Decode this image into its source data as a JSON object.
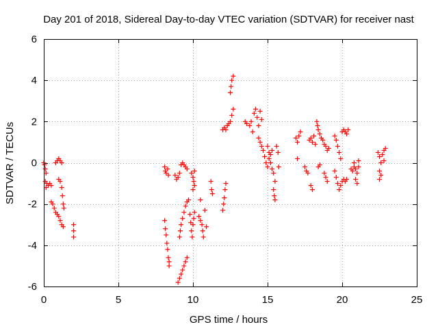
{
  "chart_data": {
    "type": "scatter",
    "title": "Day 201 of 2018, Sidereal Day-to-day VTEC variation (SDTVAR) for receiver nast",
    "xlabel": "GPS time / hours",
    "ylabel": "SDTVAR / TECUs",
    "xlim": [
      0,
      25
    ],
    "ylim": [
      -6,
      6
    ],
    "xticks": [
      0,
      5,
      10,
      15,
      20,
      25
    ],
    "yticks": [
      -6,
      -4,
      -2,
      0,
      2,
      4,
      6
    ],
    "xtick_labels": [
      "0",
      "5",
      "10",
      "15",
      "20",
      "25"
    ],
    "ytick_labels": [
      "-6",
      "-4",
      "-2",
      "0",
      "2",
      "4",
      "6"
    ],
    "grid": true,
    "marker": "+",
    "series": [
      {
        "name": "SDTVAR",
        "color": "#ff0000",
        "points": [
          [
            0.0,
            0.0
          ],
          [
            0.05,
            -0.1
          ],
          [
            0.1,
            -0.3
          ],
          [
            0.15,
            -0.5
          ],
          [
            0.1,
            -0.9
          ],
          [
            0.15,
            -1.2
          ],
          [
            0.2,
            -1.0
          ],
          [
            0.3,
            -1.1
          ],
          [
            0.4,
            -1.0
          ],
          [
            0.5,
            -1.1
          ],
          [
            0.5,
            -1.9
          ],
          [
            0.6,
            -2.0
          ],
          [
            0.7,
            -2.2
          ],
          [
            0.8,
            -2.4
          ],
          [
            0.9,
            -2.5
          ],
          [
            1.0,
            -2.6
          ],
          [
            1.1,
            -2.8
          ],
          [
            1.2,
            -3.0
          ],
          [
            1.3,
            -3.1
          ],
          [
            0.8,
            0.0
          ],
          [
            0.9,
            0.1
          ],
          [
            1.0,
            0.2
          ],
          [
            1.1,
            0.1
          ],
          [
            1.2,
            0.0
          ],
          [
            1.0,
            -0.8
          ],
          [
            1.1,
            -0.9
          ],
          [
            1.2,
            -1.2
          ],
          [
            1.25,
            -1.6
          ],
          [
            1.3,
            -2.0
          ],
          [
            1.35,
            -2.2
          ],
          [
            2.0,
            -3.0
          ],
          [
            2.0,
            -3.3
          ],
          [
            2.0,
            -3.6
          ],
          [
            8.1,
            -0.2
          ],
          [
            8.15,
            -0.4
          ],
          [
            8.2,
            -0.5
          ],
          [
            8.3,
            -0.3
          ],
          [
            8.35,
            -0.6
          ],
          [
            8.1,
            -2.8
          ],
          [
            8.15,
            -3.2
          ],
          [
            8.2,
            -3.5
          ],
          [
            8.25,
            -3.9
          ],
          [
            8.3,
            -4.2
          ],
          [
            8.35,
            -4.6
          ],
          [
            8.4,
            -4.8
          ],
          [
            8.4,
            -5.0
          ],
          [
            8.8,
            -0.6
          ],
          [
            8.9,
            -0.8
          ],
          [
            9.0,
            -0.7
          ],
          [
            9.1,
            -0.5
          ],
          [
            9.0,
            -5.8
          ],
          [
            9.1,
            -5.6
          ],
          [
            9.2,
            -5.4
          ],
          [
            9.3,
            -5.2
          ],
          [
            9.4,
            -5.0
          ],
          [
            9.5,
            -4.8
          ],
          [
            9.6,
            -4.6
          ],
          [
            9.1,
            -3.6
          ],
          [
            9.15,
            -3.3
          ],
          [
            9.2,
            -3.0
          ],
          [
            9.3,
            -2.7
          ],
          [
            9.4,
            -2.4
          ],
          [
            9.5,
            -2.1
          ],
          [
            9.6,
            -1.9
          ],
          [
            9.7,
            -1.8
          ],
          [
            9.2,
            -0.1
          ],
          [
            9.3,
            0.0
          ],
          [
            9.4,
            -0.1
          ],
          [
            9.5,
            -0.2
          ],
          [
            9.6,
            -0.3
          ],
          [
            9.8,
            -2.5
          ],
          [
            9.85,
            -2.9
          ],
          [
            9.9,
            -3.3
          ],
          [
            9.95,
            -3.6
          ],
          [
            10.0,
            -3.0
          ],
          [
            10.05,
            -2.7
          ],
          [
            10.1,
            -2.4
          ],
          [
            9.9,
            -0.5
          ],
          [
            10.0,
            -0.7
          ],
          [
            10.05,
            -0.9
          ],
          [
            10.1,
            -1.1
          ],
          [
            10.0,
            -1.3
          ],
          [
            10.1,
            -0.4
          ],
          [
            10.4,
            -2.6
          ],
          [
            10.5,
            -2.8
          ],
          [
            10.6,
            -3.0
          ],
          [
            10.65,
            -3.3
          ],
          [
            10.7,
            -3.6
          ],
          [
            10.5,
            -1.8
          ],
          [
            10.8,
            -2.3
          ],
          [
            10.9,
            -3.1
          ],
          [
            11.2,
            -0.9
          ],
          [
            11.25,
            -1.3
          ],
          [
            11.3,
            -1.5
          ],
          [
            12.0,
            1.6
          ],
          [
            12.1,
            1.7
          ],
          [
            12.2,
            1.6
          ],
          [
            12.3,
            1.8
          ],
          [
            12.4,
            1.9
          ],
          [
            12.0,
            -2.3
          ],
          [
            12.05,
            -2.0
          ],
          [
            12.1,
            -1.7
          ],
          [
            12.15,
            -1.3
          ],
          [
            12.2,
            -1.0
          ],
          [
            12.5,
            3.4
          ],
          [
            12.55,
            3.7
          ],
          [
            12.6,
            4.0
          ],
          [
            12.7,
            4.2
          ],
          [
            12.5,
            2.0
          ],
          [
            12.6,
            2.3
          ],
          [
            12.7,
            2.6
          ],
          [
            13.5,
            2.0
          ],
          [
            13.6,
            1.9
          ],
          [
            13.8,
            1.8
          ],
          [
            13.9,
            2.0
          ],
          [
            14.0,
            1.5
          ],
          [
            14.1,
            2.4
          ],
          [
            14.2,
            2.6
          ],
          [
            14.3,
            2.2
          ],
          [
            14.4,
            1.8
          ],
          [
            14.5,
            2.5
          ],
          [
            14.6,
            2.1
          ],
          [
            14.4,
            1.2
          ],
          [
            14.5,
            1.0
          ],
          [
            14.6,
            0.8
          ],
          [
            14.7,
            0.6
          ],
          [
            14.8,
            0.3
          ],
          [
            14.9,
            0.0
          ],
          [
            15.0,
            -0.2
          ],
          [
            15.1,
            0.2
          ],
          [
            15.2,
            0.4
          ],
          [
            15.3,
            0.6
          ],
          [
            15.0,
            0.8
          ],
          [
            15.1,
            0.5
          ],
          [
            15.2,
            0.0
          ],
          [
            15.3,
            -0.3
          ],
          [
            15.4,
            -0.5
          ],
          [
            15.5,
            -0.9
          ],
          [
            15.4,
            -1.3
          ],
          [
            15.45,
            -1.6
          ],
          [
            15.5,
            -1.8
          ],
          [
            15.6,
            0.8
          ],
          [
            15.7,
            0.5
          ],
          [
            15.75,
            -0.2
          ],
          [
            16.9,
            1.2
          ],
          [
            17.0,
            1.0
          ],
          [
            17.1,
            1.3
          ],
          [
            17.2,
            1.5
          ],
          [
            17.0,
            0.2
          ],
          [
            17.5,
            -0.2
          ],
          [
            17.6,
            -0.4
          ],
          [
            17.7,
            -0.5
          ],
          [
            17.8,
            1.1
          ],
          [
            17.9,
            1.2
          ],
          [
            18.0,
            1.0
          ],
          [
            18.1,
            1.3
          ],
          [
            18.2,
            0.9
          ],
          [
            18.3,
            2.0
          ],
          [
            18.35,
            1.8
          ],
          [
            18.4,
            1.6
          ],
          [
            18.5,
            1.4
          ],
          [
            18.6,
            1.2
          ],
          [
            17.9,
            -1.1
          ],
          [
            18.0,
            -1.3
          ],
          [
            18.4,
            -0.2
          ],
          [
            18.5,
            -0.1
          ],
          [
            18.7,
            1.1
          ],
          [
            18.8,
            0.9
          ],
          [
            18.9,
            0.8
          ],
          [
            19.0,
            0.6
          ],
          [
            19.1,
            0.7
          ],
          [
            18.8,
            -0.5
          ],
          [
            18.9,
            -0.7
          ],
          [
            19.0,
            -0.9
          ],
          [
            19.5,
            1.3
          ],
          [
            19.6,
            1.1
          ],
          [
            19.7,
            0.8
          ],
          [
            19.8,
            0.5
          ],
          [
            19.9,
            0.2
          ],
          [
            19.5,
            -0.4
          ],
          [
            19.6,
            -0.7
          ],
          [
            19.7,
            -1.0
          ],
          [
            19.8,
            -1.3
          ],
          [
            19.9,
            -1.1
          ],
          [
            20.0,
            -0.9
          ],
          [
            20.0,
            1.5
          ],
          [
            20.1,
            1.6
          ],
          [
            20.2,
            1.5
          ],
          [
            20.3,
            1.4
          ],
          [
            20.4,
            1.6
          ],
          [
            20.1,
            -0.8
          ],
          [
            20.2,
            -0.9
          ],
          [
            20.3,
            -0.8
          ],
          [
            20.6,
            -0.3
          ],
          [
            20.7,
            -0.4
          ],
          [
            20.8,
            -0.2
          ],
          [
            20.9,
            -0.3
          ],
          [
            21.0,
            -0.5
          ],
          [
            21.1,
            -0.2
          ],
          [
            20.8,
            0.0
          ],
          [
            20.9,
            -0.8
          ],
          [
            21.0,
            -1.0
          ],
          [
            21.1,
            0.1
          ],
          [
            22.4,
            0.5
          ],
          [
            22.5,
            0.3
          ],
          [
            22.6,
            0.0
          ],
          [
            22.5,
            -0.4
          ],
          [
            22.6,
            -0.6
          ],
          [
            22.5,
            -0.8
          ],
          [
            22.7,
            0.4
          ],
          [
            22.8,
            0.6
          ],
          [
            22.9,
            0.7
          ],
          [
            22.8,
            0.1
          ]
        ]
      }
    ]
  }
}
